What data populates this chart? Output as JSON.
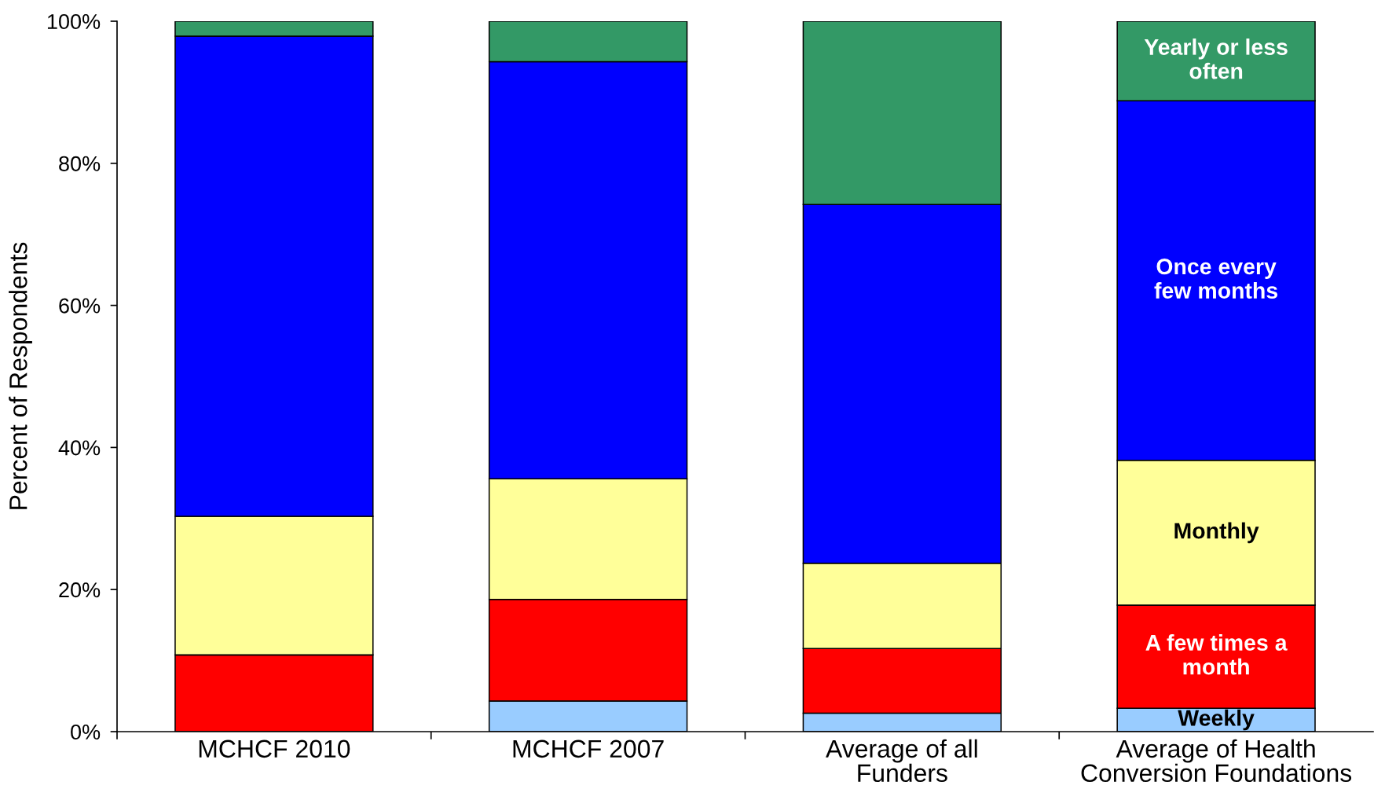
{
  "chart_data": {
    "type": "bar",
    "stacked": true,
    "categories": [
      "MCHCF 2010",
      "MCHCF 2007",
      "Average of all\nFunders",
      "Average of Health\nConversion Foundations"
    ],
    "ylabel": "Percent of Respondents",
    "ylim": [
      0,
      100
    ],
    "yticks": [
      {
        "value": 0,
        "label": "0%"
      },
      {
        "value": 20,
        "label": "20%"
      },
      {
        "value": 40,
        "label": "40%"
      },
      {
        "value": 60,
        "label": "60%"
      },
      {
        "value": 80,
        "label": "80%"
      },
      {
        "value": 100,
        "label": "100%"
      }
    ],
    "series": [
      {
        "name": "Weekly",
        "color": "#99ccff",
        "values": [
          0,
          4.3,
          2.6,
          3.3
        ]
      },
      {
        "name": "A few times a\nmonth",
        "color": "#ff0000",
        "values": [
          10.8,
          14.3,
          9.1,
          14.5
        ]
      },
      {
        "name": "Monthly",
        "color": "#ffff99",
        "values": [
          19.5,
          17.0,
          12.0,
          20.4
        ]
      },
      {
        "name": "Once every\nfew months",
        "color": "#0000ff",
        "values": [
          67.6,
          58.7,
          50.5,
          50.6
        ]
      },
      {
        "name": "Yearly or less\noften",
        "color": "#339966",
        "values": [
          2.1,
          5.7,
          25.8,
          11.2
        ]
      }
    ]
  }
}
